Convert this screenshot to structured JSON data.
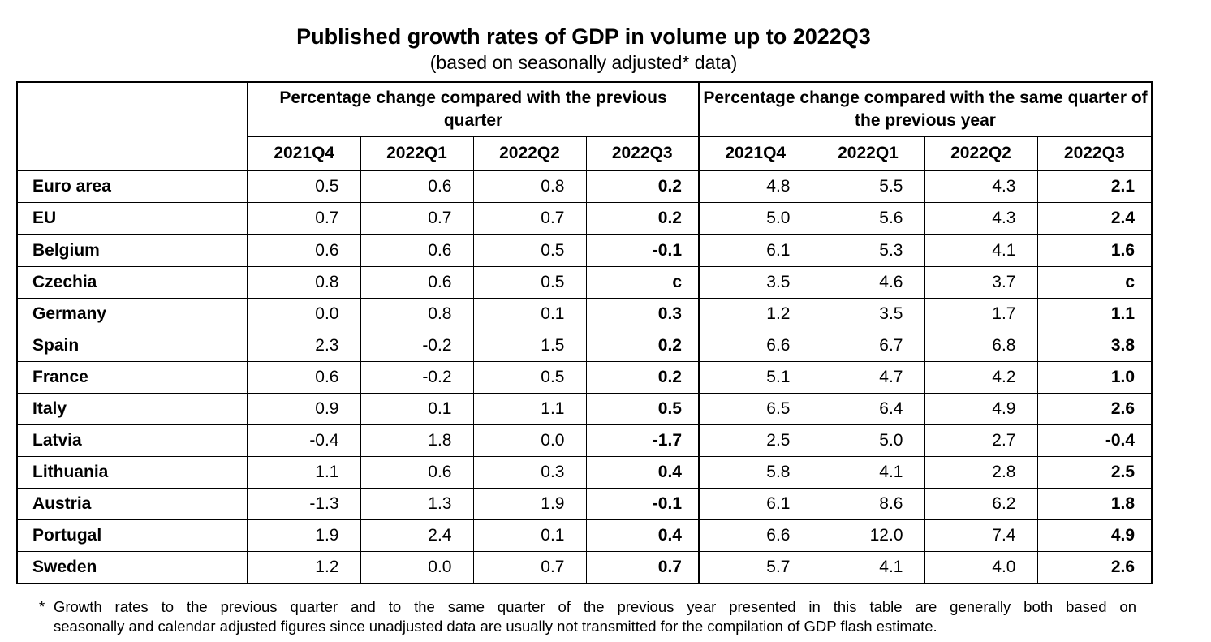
{
  "title": "Published growth rates of GDP in volume up to 2022Q3",
  "subtitle": "(based on seasonally adjusted* data)",
  "table": {
    "group_prev_quarter": "Percentage change compared with the previous quarter",
    "group_same_quarter": "Percentage change compared with the same quarter of the previous year",
    "quarters": [
      "2021Q4",
      "2022Q1",
      "2022Q2",
      "2022Q3",
      "2021Q4",
      "2022Q1",
      "2022Q2",
      "2022Q3"
    ],
    "rows": [
      {
        "country": "Euro area",
        "values": [
          "0.5",
          "0.6",
          "0.8",
          "0.2",
          "4.8",
          "5.5",
          "4.3",
          "2.1"
        ]
      },
      {
        "country": "EU",
        "values": [
          "0.7",
          "0.7",
          "0.7",
          "0.2",
          "5.0",
          "5.6",
          "4.3",
          "2.4"
        ]
      },
      {
        "country": "Belgium",
        "values": [
          "0.6",
          "0.6",
          "0.5",
          "-0.1",
          "6.1",
          "5.3",
          "4.1",
          "1.6"
        ]
      },
      {
        "country": "Czechia",
        "values": [
          "0.8",
          "0.6",
          "0.5",
          "c",
          "3.5",
          "4.6",
          "3.7",
          "c"
        ]
      },
      {
        "country": "Germany",
        "values": [
          "0.0",
          "0.8",
          "0.1",
          "0.3",
          "1.2",
          "3.5",
          "1.7",
          "1.1"
        ]
      },
      {
        "country": "Spain",
        "values": [
          "2.3",
          "-0.2",
          "1.5",
          "0.2",
          "6.6",
          "6.7",
          "6.8",
          "3.8"
        ]
      },
      {
        "country": "France",
        "values": [
          "0.6",
          "-0.2",
          "0.5",
          "0.2",
          "5.1",
          "4.7",
          "4.2",
          "1.0"
        ]
      },
      {
        "country": "Italy",
        "values": [
          "0.9",
          "0.1",
          "1.1",
          "0.5",
          "6.5",
          "6.4",
          "4.9",
          "2.6"
        ]
      },
      {
        "country": "Latvia",
        "values": [
          "-0.4",
          "1.8",
          "0.0",
          "-1.7",
          "2.5",
          "5.0",
          "2.7",
          "-0.4"
        ]
      },
      {
        "country": "Lithuania",
        "values": [
          "1.1",
          "0.6",
          "0.3",
          "0.4",
          "5.8",
          "4.1",
          "2.8",
          "2.5"
        ]
      },
      {
        "country": "Austria",
        "values": [
          "-1.3",
          "1.3",
          "1.9",
          "-0.1",
          "6.1",
          "8.6",
          "6.2",
          "1.8"
        ]
      },
      {
        "country": "Portugal",
        "values": [
          "1.9",
          "2.4",
          "0.1",
          "0.4",
          "6.6",
          "12.0",
          "7.4",
          "4.9"
        ]
      },
      {
        "country": "Sweden",
        "values": [
          "1.2",
          "0.0",
          "0.7",
          "0.7",
          "5.7",
          "4.1",
          "4.0",
          "2.6"
        ]
      }
    ]
  },
  "footnote": {
    "star": "*",
    "line1": "Growth rates to the previous quarter and to the same quarter of the previous year presented in this table are generally both based on",
    "line2": "seasonally and calendar adjusted figures since unadjusted data are usually not transmitted for the compilation of GDP flash estimate."
  }
}
